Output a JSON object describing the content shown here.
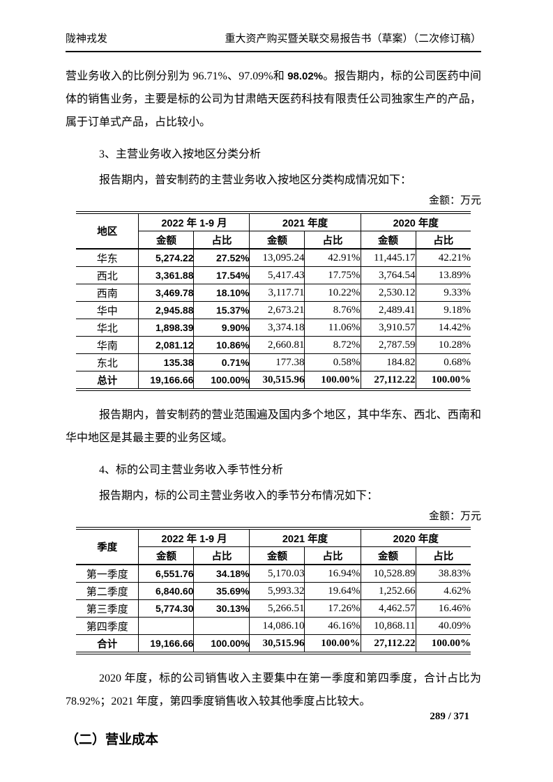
{
  "page_header": {
    "left": "陇神戎发",
    "right": "重大资产购买暨关联交易报告书（草案）（二次修订稿）"
  },
  "intro_paragraph": {
    "pre": "营业务收入的比例分别为 96.71%、97.09%和 ",
    "bold": "98.02%",
    "post": "。报告期内，标的公司医药中间体的销售业务，主要是标的公司为甘肃皓天医药科技有限责任公司独家生产的产品，属于订单式产品，占比较小。"
  },
  "section3": {
    "heading": "3、主营业务收入按地区分类分析",
    "intro": "报告期内，普安制药的主营业务收入按地区分类构成情况如下：",
    "unit_label": "金额：万元"
  },
  "region_table": {
    "corner_header": "地区",
    "period_headers": [
      "2022 年 1-9 月",
      "2021 年度",
      "2020 年度"
    ],
    "sub_headers": [
      "金额",
      "占比"
    ],
    "rows": [
      [
        "华东",
        "5,274.22",
        "27.52%",
        "13,095.24",
        "42.91%",
        "11,445.17",
        "42.21%"
      ],
      [
        "西北",
        "3,361.88",
        "17.54%",
        "5,417.43",
        "17.75%",
        "3,764.54",
        "13.89%"
      ],
      [
        "西南",
        "3,469.78",
        "18.10%",
        "3,117.71",
        "10.22%",
        "2,530.12",
        "9.33%"
      ],
      [
        "华中",
        "2,945.88",
        "15.37%",
        "2,673.21",
        "8.76%",
        "2,489.41",
        "9.18%"
      ],
      [
        "华北",
        "1,898.39",
        "9.90%",
        "3,374.18",
        "11.06%",
        "3,910.57",
        "14.42%"
      ],
      [
        "华南",
        "2,081.12",
        "10.86%",
        "2,660.81",
        "8.72%",
        "2,787.59",
        "10.28%"
      ],
      [
        "东北",
        "135.38",
        "0.71%",
        "177.38",
        "0.58%",
        "184.82",
        "0.68%"
      ]
    ],
    "total_row": [
      "总计",
      "19,166.66",
      "100.00%",
      "30,515.96",
      "100.00%",
      "27,112.22",
      "100.00%"
    ]
  },
  "region_note": "报告期内，普安制药的营业范围遍及国内多个地区，其中华东、西北、西南和华中地区是其最主要的业务区域。",
  "section4": {
    "heading": "4、标的公司主营业务收入季节性分析",
    "intro": "报告期内，标的公司主营业务收入的季节分布情况如下：",
    "unit_label": "金额：万元"
  },
  "quarter_table": {
    "corner_header": "季度",
    "period_headers": [
      "2022 年 1-9 月",
      "2021 年度",
      "2020 年度"
    ],
    "sub_headers": [
      "金额",
      "占比"
    ],
    "rows": [
      [
        "第一季度",
        "6,551.76",
        "34.18%",
        "5,170.03",
        "16.94%",
        "10,528.89",
        "38.83%"
      ],
      [
        "第二季度",
        "6,840.60",
        "35.69%",
        "5,993.32",
        "19.64%",
        "1,252.66",
        "4.62%"
      ],
      [
        "第三季度",
        "5,774.30",
        "30.13%",
        "5,266.51",
        "17.26%",
        "4,462.57",
        "16.46%"
      ],
      [
        "第四季度",
        "",
        "",
        "14,086.10",
        "46.16%",
        "10,868.11",
        "40.09%"
      ]
    ],
    "total_row": [
      "合计",
      "19,166.66",
      "100.00%",
      "30,515.96",
      "100.00%",
      "27,112.22",
      "100.00%"
    ]
  },
  "quarter_note": "2020 年度，标的公司销售收入主要集中在第一季度和第四季度，合计占比为 78.92%；2021 年度，第四季度销售收入较其他季度占比较大。",
  "section2_heading": "（二）营业成本",
  "page_footer": {
    "page_number": "289 / 371"
  }
}
